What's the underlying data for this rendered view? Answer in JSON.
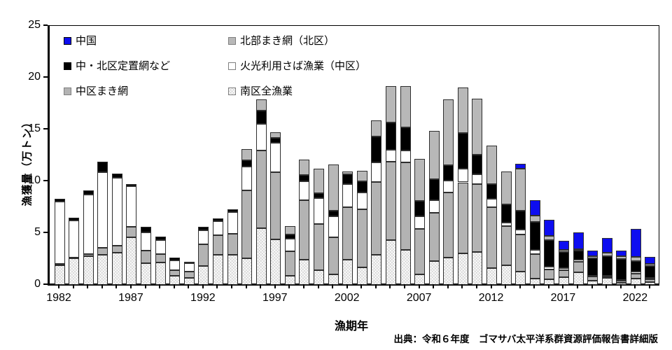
{
  "axes": {
    "y_label": "漁獲量（万トン）",
    "x_label": "漁期年",
    "y_ticks": [
      0,
      5,
      10,
      15,
      20,
      25
    ],
    "x_labeled_years": [
      1982,
      1987,
      1992,
      1997,
      2002,
      2007,
      2012,
      2017,
      2022
    ]
  },
  "source": "出典：令和６年度　ゴマサバ太平洋系群資源評価報告書詳細版",
  "legend_entries": [
    {
      "series": "中国",
      "column": 0,
      "row": 0
    },
    {
      "series": "北部まき網（北区）",
      "column": 1,
      "row": 0
    },
    {
      "series": "中・北区定置網など",
      "column": 0,
      "row": 1
    },
    {
      "series": "火光利用さば漁業（中区）",
      "column": 1,
      "row": 1
    },
    {
      "series": "中区まき網",
      "column": 0,
      "row": 2
    },
    {
      "series": "南区全漁業",
      "column": 1,
      "row": 2
    }
  ],
  "chart_data": {
    "type": "bar",
    "stacked": true,
    "title": "",
    "xlabel": "漁期年",
    "ylabel": "漁獲量（万トン）",
    "ylim": [
      0,
      25
    ],
    "grid": false,
    "legend_position": "top-left, two columns inside plot",
    "x": [
      1982,
      1983,
      1984,
      1985,
      1986,
      1987,
      1988,
      1989,
      1990,
      1991,
      1992,
      1993,
      1994,
      1995,
      1996,
      1997,
      1998,
      1999,
      2000,
      2001,
      2002,
      2003,
      2004,
      2005,
      2006,
      2007,
      2008,
      2009,
      2010,
      2011,
      2012,
      2013,
      2014,
      2015,
      2016,
      2017,
      2018,
      2019,
      2020,
      2021,
      2022,
      2023
    ],
    "series": [
      {
        "name": "南区全漁業",
        "color": "#fcfcfc",
        "pattern": "dots",
        "values": [
          1.9,
          2.55,
          2.8,
          2.9,
          3.1,
          4.6,
          2.1,
          2.15,
          0.85,
          0.7,
          1.8,
          2.9,
          2.9,
          2.55,
          5.5,
          4.4,
          0.85,
          2.45,
          1.45,
          1.0,
          2.45,
          1.7,
          2.9,
          4.35,
          3.35,
          1.0,
          2.3,
          2.65,
          3.05,
          3.15,
          1.65,
          1.9,
          1.3,
          0.6,
          0.55,
          0.75,
          1.25,
          0.4,
          0.65,
          0.2,
          0.6,
          0.25
        ]
      },
      {
        "name": "中区まき網",
        "color": "#b3b3b3",
        "pattern": "solid",
        "values": [
          0.15,
          0.1,
          0.2,
          0.7,
          0.7,
          1.0,
          1.2,
          0.85,
          0.6,
          0.6,
          2.1,
          1.9,
          2.05,
          6.6,
          7.45,
          6.5,
          2.4,
          5.75,
          4.45,
          3.6,
          5.05,
          5.6,
          7.05,
          7.55,
          8.5,
          4.4,
          4.65,
          6.3,
          6.85,
          6.6,
          5.85,
          3.8,
          3.55,
          2.4,
          0.95,
          0.65,
          0.95,
          0.4,
          0.15,
          0.2,
          0.5,
          0.3
        ]
      },
      {
        "name": "火光利用さば漁業（中区）",
        "color": "#ffffff",
        "pattern": "solid",
        "values": [
          6.0,
          3.6,
          5.7,
          7.25,
          6.55,
          3.9,
          1.8,
          1.35,
          0.9,
          0.8,
          1.4,
          1.35,
          2.05,
          2.25,
          2.6,
          2.8,
          1.2,
          1.8,
          2.5,
          2.0,
          2.2,
          1.6,
          1.9,
          1.15,
          1.1,
          1.25,
          1.25,
          1.15,
          1.35,
          0.9,
          0.8,
          0.3,
          0.5,
          0.35,
          0.25,
          0.2,
          0.25,
          0.1,
          0.1,
          0.1,
          0.2,
          0.1
        ]
      },
      {
        "name": "中・北区定置網など",
        "color": "#000000",
        "pattern": "solid",
        "values": [
          0.25,
          0.25,
          0.45,
          1.05,
          0.4,
          0.2,
          0.5,
          0.3,
          0.3,
          0.15,
          0.3,
          0.3,
          0.3,
          0.6,
          1.3,
          0.5,
          0.4,
          0.6,
          0.45,
          0.55,
          0.95,
          1.1,
          2.5,
          2.6,
          2.25,
          1.45,
          2.0,
          1.45,
          3.4,
          1.9,
          1.45,
          1.8,
          1.8,
          2.7,
          2.6,
          1.55,
          0.85,
          1.7,
          1.9,
          2.0,
          1.0,
          1.15
        ]
      },
      {
        "name": "北部まき網（北区）",
        "color": "#b8b8b8",
        "pattern": "solid",
        "values": [
          0,
          0,
          0,
          0,
          0,
          0,
          0,
          0,
          0,
          0,
          0,
          0,
          0,
          1.1,
          1.05,
          0.5,
          0.85,
          1.5,
          2.4,
          4.45,
          0.3,
          1.0,
          1.55,
          3.55,
          4.0,
          4.05,
          4.7,
          6.35,
          4.4,
          5.45,
          3.7,
          3.15,
          4.05,
          0.65,
          0.35,
          0.25,
          0.15,
          0.2,
          0.3,
          0.3,
          0.4,
          0.25
        ]
      },
      {
        "name": "中国",
        "color": "#0d0df0",
        "pattern": "solid",
        "values": [
          0,
          0,
          0,
          0,
          0,
          0,
          0,
          0,
          0,
          0,
          0,
          0,
          0,
          0,
          0,
          0,
          0,
          0,
          0,
          0,
          0,
          0,
          0,
          0,
          0,
          0,
          0,
          0,
          0,
          0,
          0,
          0,
          0.5,
          1.5,
          1.6,
          0.85,
          1.6,
          0.5,
          1.45,
          0.5,
          2.7,
          0.65
        ]
      }
    ]
  }
}
